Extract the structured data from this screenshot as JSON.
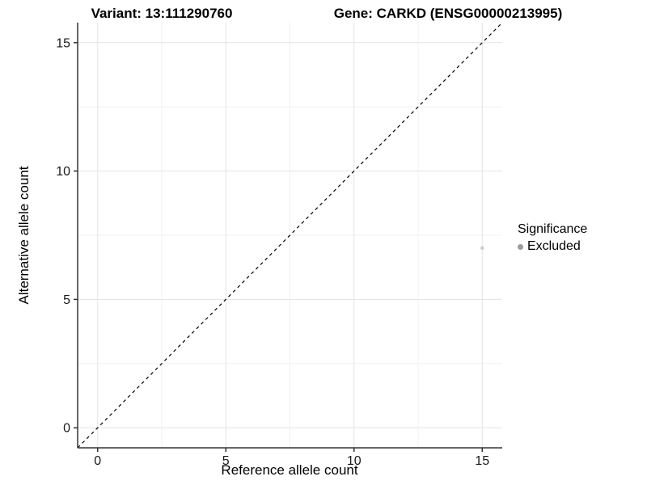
{
  "titles": {
    "left": "Variant: 13:111290760",
    "right": "Gene: CARKD (ENSG00000213995)"
  },
  "chart_data": {
    "type": "scatter",
    "xlabel": "Reference allele count",
    "ylabel": "Alternative allele count",
    "xlim": [
      -0.78,
      15.78
    ],
    "ylim": [
      -0.78,
      15.78
    ],
    "x_ticks": [
      0,
      5,
      10,
      15
    ],
    "y_ticks": [
      0,
      5,
      10,
      15
    ],
    "minor_ticks": [
      2.5,
      7.5,
      12.5
    ],
    "grid": "major and minor, light gray on white",
    "series": [
      {
        "name": "Excluded",
        "points": [
          {
            "x": 15,
            "y": 7
          }
        ],
        "color": "#c9c9c9",
        "point_radius": 2.2
      }
    ],
    "reference_line": {
      "slope": 1,
      "intercept": 0,
      "style": "dashed",
      "color": "#000000"
    },
    "legend": {
      "title": "Significance",
      "position": "right",
      "items": [
        {
          "label": "Excluded",
          "color": "#9b9b9b"
        }
      ]
    }
  },
  "style_colors": {
    "grid_major": "#e3e3e3",
    "grid_minor": "#f0f0f0",
    "axis_line": "#333333",
    "tick_label": "#1a1a1a"
  }
}
